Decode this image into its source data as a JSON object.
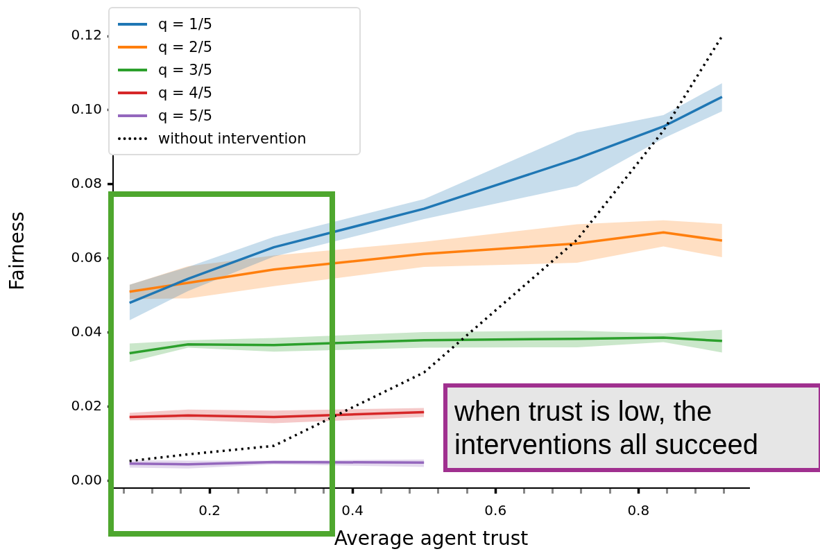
{
  "chart_data": {
    "type": "line",
    "xlabel": "Average agent trust",
    "ylabel": "Fairness",
    "x": [
      0.088,
      0.17,
      0.29,
      0.5,
      0.714,
      0.835,
      0.917
    ],
    "xlim": [
      0.065,
      0.955
    ],
    "ylim": [
      -0.002,
      0.126
    ],
    "xticks": [
      {
        "value": 0.08,
        "label": null
      },
      {
        "value": 0.12,
        "label": null
      },
      {
        "value": 0.16,
        "label": null
      },
      0.2,
      {
        "value": 0.24,
        "label": null
      },
      {
        "value": 0.28,
        "label": null
      },
      {
        "value": 0.32,
        "label": null
      },
      {
        "value": 0.36,
        "label": null
      },
      0.4,
      {
        "value": 0.44,
        "label": null
      },
      {
        "value": 0.48,
        "label": null
      },
      {
        "value": 0.52,
        "label": null
      },
      {
        "value": 0.56,
        "label": null
      },
      0.6,
      {
        "value": 0.64,
        "label": null
      },
      {
        "value": 0.68,
        "label": null
      },
      {
        "value": 0.72,
        "label": null
      },
      {
        "value": 0.76,
        "label": null
      },
      0.8,
      {
        "value": 0.84,
        "label": null
      },
      {
        "value": 0.88,
        "label": null
      },
      {
        "value": 0.92,
        "label": null
      }
    ],
    "yticks": [
      {
        "value": 0,
        "label": "0.00"
      },
      {
        "value": 0.02,
        "label": "0.02"
      },
      {
        "value": 0.04,
        "label": "0.04"
      },
      {
        "value": 0.06,
        "label": "0.06"
      },
      {
        "value": 0.08,
        "label": "0.08"
      },
      {
        "value": 0.1,
        "label": "0.10"
      },
      {
        "value": 0.12,
        "label": "0.12"
      }
    ],
    "grid": false,
    "legend": "top left",
    "marker": "none",
    "series": [
      {
        "name": "q = 1/5",
        "color": "#1f77b4",
        "values": [
          0.048,
          0.0545,
          0.063,
          0.0734,
          0.0869,
          0.0956,
          0.1036
        ],
        "lower": [
          0.0433,
          0.0512,
          0.0605,
          0.0706,
          0.0795,
          0.0924,
          0.0997
        ],
        "upper": [
          0.0529,
          0.0577,
          0.0658,
          0.076,
          0.094,
          0.0987,
          0.1073
        ]
      },
      {
        "name": "q = 2/5",
        "color": "#ff7f0e",
        "values": [
          0.051,
          0.0534,
          0.057,
          0.0612,
          0.064,
          0.067,
          0.0648
        ],
        "lower": [
          0.049,
          0.0492,
          0.0525,
          0.0577,
          0.0588,
          0.0632,
          0.0603
        ],
        "upper": [
          0.0529,
          0.0579,
          0.0608,
          0.0645,
          0.0692,
          0.0703,
          0.0693
        ]
      },
      {
        "name": "q = 3/5",
        "color": "#2ca02c",
        "values": [
          0.0344,
          0.0368,
          0.0366,
          0.0379,
          0.0383,
          0.0386,
          0.0377
        ],
        "lower": [
          0.032,
          0.0359,
          0.0348,
          0.0359,
          0.036,
          0.0374,
          0.0346
        ],
        "upper": [
          0.037,
          0.0379,
          0.0385,
          0.0401,
          0.0405,
          0.0398,
          0.0407
        ]
      },
      {
        "name": "q = 4/5",
        "color": "#d62728",
        "values": [
          0.0172,
          0.0176,
          0.0172,
          0.0185,
          null,
          null,
          null
        ],
        "lower": [
          0.0163,
          0.0164,
          0.0155,
          0.0172,
          null,
          null,
          null
        ],
        "upper": [
          0.0183,
          0.0192,
          0.0189,
          0.0196,
          null,
          null,
          null
        ]
      },
      {
        "name": "q = 5/5",
        "color": "#9467bd",
        "values": [
          0.0046,
          0.0044,
          0.005,
          0.0049,
          null,
          null,
          null
        ],
        "lower": [
          0.0035,
          0.0033,
          0.0044,
          0.0037,
          null,
          null,
          null
        ],
        "upper": [
          0.0055,
          0.0054,
          0.0054,
          0.0057,
          null,
          null,
          null
        ]
      },
      {
        "name": "without intervention",
        "color": "#000000",
        "line_style": "dotted",
        "values": [
          0.0053,
          0.0071,
          0.0094,
          0.0292,
          0.065,
          0.0945,
          0.12
        ]
      }
    ],
    "annotations": [
      "when trust is low, the\ninterventions all succeed"
    ]
  }
}
